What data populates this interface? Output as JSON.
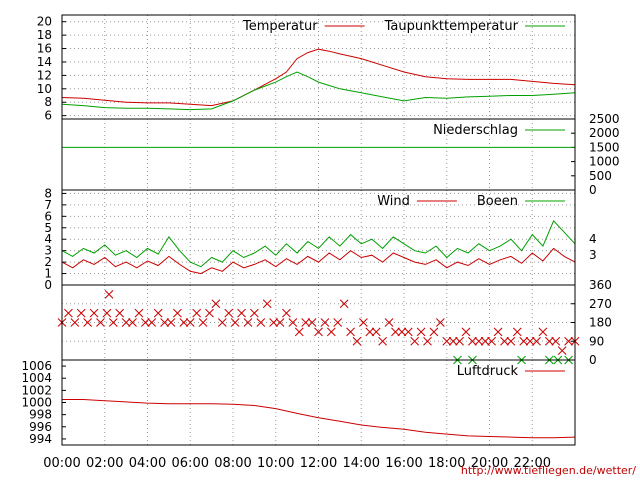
{
  "colors": {
    "primary": "#cc0000",
    "secondary": "#00a000",
    "grid": "#999999",
    "frame": "#000000",
    "source": "#c00000"
  },
  "source": "http://www.tiefliegen.de/wetter/",
  "x_axis": {
    "labels": [
      "00:00",
      "02:00",
      "04:00",
      "06:00",
      "08:00",
      "10:00",
      "12:00",
      "14:00",
      "16:00",
      "18:00",
      "20:00",
      "22:00"
    ],
    "range_hours": [
      0,
      24
    ]
  },
  "chart_data": [
    {
      "type": "line",
      "id": "temperature",
      "x_range": [
        0,
        24
      ],
      "ylim": [
        5.5,
        21
      ],
      "yticks": [
        6,
        8,
        10,
        12,
        14,
        16,
        18,
        20
      ],
      "ytick_labels": [
        "6",
        "8",
        "10",
        "12",
        "14",
        "16",
        "18",
        "20"
      ],
      "grid": true,
      "legend": "top-right",
      "series": [
        {
          "name": "Temperatur",
          "color": "#cc0000",
          "x": [
            0,
            1,
            2,
            3,
            4,
            5,
            6,
            7,
            8,
            9,
            10,
            10.5,
            11,
            11.5,
            12,
            12.5,
            13,
            14,
            15,
            16,
            17,
            18,
            19,
            20,
            21,
            22,
            23,
            24
          ],
          "y": [
            8.7,
            8.6,
            8.3,
            8.0,
            7.9,
            7.9,
            7.7,
            7.5,
            8.2,
            9.8,
            11.5,
            12.5,
            14.5,
            15.4,
            15.9,
            15.6,
            15.2,
            14.5,
            13.5,
            12.5,
            11.8,
            11.5,
            11.4,
            11.4,
            11.4,
            11.1,
            10.8,
            10.6
          ]
        },
        {
          "name": "Taupunkttemperatur",
          "color": "#00a000",
          "x": [
            0,
            1,
            2,
            3,
            4,
            5,
            6,
            7,
            8,
            9,
            10,
            10.5,
            11,
            11.5,
            12,
            12.5,
            13,
            14,
            15,
            16,
            17,
            18,
            19,
            20,
            21,
            22,
            23,
            24
          ],
          "y": [
            7.7,
            7.5,
            7.2,
            7.1,
            7.1,
            7.0,
            6.9,
            7.0,
            8.2,
            9.8,
            11.0,
            11.8,
            12.5,
            11.8,
            11.0,
            10.5,
            10.0,
            9.4,
            8.8,
            8.2,
            8.7,
            8.6,
            8.8,
            8.9,
            9.0,
            9.0,
            9.2,
            9.4
          ]
        }
      ]
    },
    {
      "type": "line",
      "id": "precipitation",
      "x_range": [
        0,
        24
      ],
      "ylim": [
        0,
        2500
      ],
      "yticks": [
        0,
        500,
        1000,
        1500,
        2000,
        2500
      ],
      "ytick_labels": [
        "0",
        "500",
        "1000",
        "1500",
        "2000",
        "2500"
      ],
      "ytick_side": "right",
      "grid": false,
      "legend": "top-right",
      "series": [
        {
          "name": "Niederschlag",
          "color": "#00a000",
          "x": [
            0,
            24
          ],
          "y": [
            1500,
            1500
          ]
        }
      ]
    },
    {
      "type": "line",
      "id": "wind",
      "x_range": [
        0,
        24
      ],
      "ylim": [
        0,
        8.3
      ],
      "yticks": [
        0,
        1,
        2,
        3,
        4,
        5,
        6,
        7,
        8
      ],
      "ytick_labels": [
        "0",
        "1",
        "2",
        "3",
        "4",
        "5",
        "6",
        "7",
        "8"
      ],
      "y2ticks": [
        2.6,
        4.0
      ],
      "y2tick_labels": [
        "3",
        "4"
      ],
      "grid": true,
      "legend": "top-right",
      "series": [
        {
          "name": "Wind",
          "color": "#cc0000",
          "x": [
            0,
            0.5,
            1,
            1.5,
            2,
            2.5,
            3,
            3.5,
            4,
            4.5,
            5,
            5.5,
            6,
            6.5,
            7,
            7.5,
            8,
            8.5,
            9,
            9.5,
            10,
            10.5,
            11,
            11.5,
            12,
            12.5,
            13,
            13.5,
            14,
            14.5,
            15,
            15.5,
            16,
            16.5,
            17,
            17.5,
            18,
            18.5,
            19,
            19.5,
            20,
            20.5,
            21,
            21.5,
            22,
            22.5,
            23,
            23.5,
            24
          ],
          "y": [
            2.0,
            1.5,
            2.2,
            1.8,
            2.4,
            1.6,
            2.0,
            1.5,
            2.1,
            1.7,
            2.5,
            1.8,
            1.2,
            1.0,
            1.5,
            1.2,
            2.0,
            1.5,
            1.8,
            2.2,
            1.6,
            2.3,
            1.8,
            2.5,
            2.0,
            2.8,
            2.2,
            3.0,
            2.4,
            2.6,
            2.0,
            2.8,
            2.4,
            2.0,
            1.8,
            2.2,
            1.5,
            2.0,
            1.7,
            2.3,
            1.8,
            2.2,
            2.5,
            1.9,
            2.8,
            2.1,
            3.2,
            2.5,
            2.0
          ]
        },
        {
          "name": "Boeen",
          "color": "#00a000",
          "x": [
            0,
            0.5,
            1,
            1.5,
            2,
            2.5,
            3,
            3.5,
            4,
            4.5,
            5,
            5.5,
            6,
            6.5,
            7,
            7.5,
            8,
            8.5,
            9,
            9.5,
            10,
            10.5,
            11,
            11.5,
            12,
            12.5,
            13,
            13.5,
            14,
            14.5,
            15,
            15.5,
            16,
            16.5,
            17,
            17.5,
            18,
            18.5,
            19,
            19.5,
            20,
            20.5,
            21,
            21.5,
            22,
            22.5,
            23,
            23.5,
            24
          ],
          "y": [
            3.0,
            2.5,
            3.2,
            2.8,
            3.5,
            2.6,
            3.0,
            2.4,
            3.2,
            2.7,
            4.2,
            3.0,
            2.0,
            1.6,
            2.4,
            2.0,
            3.0,
            2.4,
            2.8,
            3.4,
            2.6,
            3.6,
            2.8,
            3.8,
            3.2,
            4.2,
            3.4,
            4.4,
            3.6,
            4.0,
            3.2,
            4.2,
            3.6,
            3.0,
            2.8,
            3.4,
            2.4,
            3.2,
            2.8,
            3.6,
            3.0,
            3.4,
            4.0,
            3.0,
            4.4,
            3.4,
            5.6,
            4.6,
            3.6
          ]
        }
      ]
    },
    {
      "type": "scatter",
      "id": "wind-direction",
      "x_range": [
        0,
        24
      ],
      "ylim": [
        0,
        360
      ],
      "yticks": [
        0,
        90,
        180,
        270,
        360
      ],
      "ytick_labels": [
        "0",
        "90",
        "180",
        "270",
        "360"
      ],
      "ytick_side": "right",
      "grid": true,
      "marker": "x",
      "series": [
        {
          "name": "",
          "color": "#cc0000",
          "x": [
            0,
            0.3,
            0.6,
            0.9,
            1.2,
            1.5,
            1.8,
            2.1,
            2.2,
            2.4,
            2.7,
            3.0,
            3.3,
            3.6,
            3.9,
            4.2,
            4.5,
            4.8,
            5.1,
            5.4,
            5.7,
            6.0,
            6.3,
            6.6,
            6.9,
            7.2,
            7.5,
            7.8,
            8.1,
            8.4,
            8.7,
            9.0,
            9.3,
            9.6,
            9.9,
            10.2,
            10.5,
            10.8,
            11.1,
            11.4,
            11.7,
            12.0,
            12.3,
            12.6,
            12.9,
            13.2,
            13.5,
            13.8,
            14.1,
            14.4,
            14.7,
            15.0,
            15.3,
            15.6,
            15.9,
            16.2,
            16.5,
            16.8,
            17.1,
            17.4,
            17.7,
            18.0,
            18.3,
            18.6,
            18.9,
            19.2,
            19.5,
            19.8,
            20.1,
            20.4,
            20.7,
            21.0,
            21.3,
            21.6,
            21.9,
            22.2,
            22.5,
            22.8,
            23.1,
            23.4,
            23.7,
            24.0
          ],
          "y": [
            180,
            225,
            180,
            225,
            180,
            225,
            180,
            225,
            315,
            180,
            225,
            180,
            180,
            225,
            180,
            180,
            225,
            180,
            180,
            225,
            180,
            180,
            225,
            180,
            225,
            270,
            180,
            225,
            180,
            225,
            180,
            225,
            180,
            270,
            180,
            180,
            225,
            180,
            135,
            180,
            180,
            135,
            180,
            135,
            180,
            270,
            135,
            90,
            180,
            135,
            135,
            90,
            180,
            135,
            135,
            135,
            90,
            135,
            90,
            135,
            180,
            90,
            90,
            90,
            135,
            90,
            90,
            90,
            90,
            135,
            90,
            90,
            135,
            90,
            90,
            90,
            135,
            90,
            90,
            45,
            90,
            90
          ]
        },
        {
          "name": "",
          "color": "#00a000",
          "x": [
            18.5,
            19.2,
            21.5,
            22.8,
            23.2,
            23.7
          ],
          "y": [
            0,
            0,
            0,
            0,
            0,
            0
          ]
        }
      ]
    },
    {
      "type": "line",
      "id": "pressure",
      "x_range": [
        0,
        24
      ],
      "ylim": [
        993,
        1007
      ],
      "yticks": [
        994,
        996,
        998,
        1000,
        1002,
        1004,
        1006
      ],
      "ytick_labels": [
        "994",
        "996",
        "998",
        "1000",
        "1002",
        "1004",
        "1006"
      ],
      "grid": false,
      "legend": "top-right",
      "series": [
        {
          "name": "Luftdruck",
          "color": "#cc0000",
          "x": [
            0,
            1,
            2,
            3,
            4,
            5,
            6,
            7,
            8,
            9,
            10,
            11,
            12,
            13,
            14,
            15,
            16,
            17,
            18,
            19,
            20,
            21,
            22,
            23,
            24
          ],
          "y": [
            1000.5,
            1000.5,
            1000.3,
            1000.1,
            999.9,
            999.8,
            999.8,
            999.8,
            999.7,
            999.5,
            999.0,
            998.2,
            997.5,
            996.9,
            996.3,
            995.9,
            995.6,
            995.1,
            994.8,
            994.5,
            994.4,
            994.3,
            994.2,
            994.2,
            994.3
          ]
        }
      ]
    }
  ]
}
